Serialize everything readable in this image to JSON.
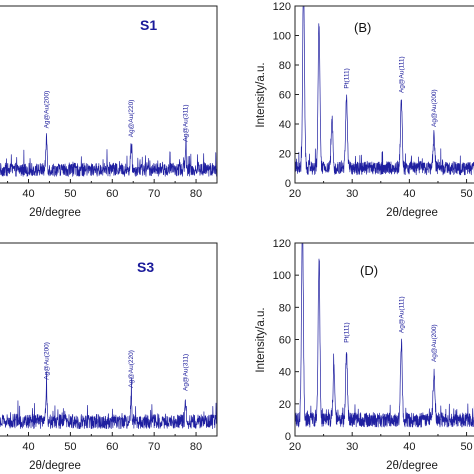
{
  "chart_data": [
    {
      "id": "S1",
      "type": "line",
      "panel_label": "S1",
      "xlabel": "2θ/degree",
      "ylabel": "",
      "xlim": [
        32,
        85
      ],
      "ylim": [
        0,
        120
      ],
      "xticks": [
        40,
        50,
        60,
        70,
        80
      ],
      "xtick_labels": [
        "40",
        "50",
        "60",
        "70",
        "80"
      ],
      "yticks": [],
      "baseline": 9,
      "noise": 4.5,
      "peaks": [
        {
          "x": 44.3,
          "height": 22,
          "label": "Ag@Au(200)"
        },
        {
          "x": 64.5,
          "height": 16,
          "label": "Ag@Au(220)"
        },
        {
          "x": 77.5,
          "height": 13,
          "label": "Ag@Au(311)"
        }
      ],
      "series": [
        {
          "values_note_excluded": true
        }
      ]
    },
    {
      "id": "B",
      "type": "line",
      "panel_label": "(B)",
      "xlabel": "2θ/degree",
      "ylabel": "Intensity/a.u.",
      "xlim": [
        20,
        52
      ],
      "ylim": [
        0,
        120
      ],
      "xticks": [
        20,
        30,
        40,
        50
      ],
      "xtick_labels": [
        "20",
        "30",
        "40",
        "50"
      ],
      "yticks": [
        0,
        20,
        40,
        60,
        80,
        100,
        120
      ],
      "ytick_labels": [
        "0",
        "20",
        "40",
        "60",
        "80",
        "100",
        "120"
      ],
      "baseline": 10,
      "noise": 4.5,
      "peaks": [
        {
          "x": 21.5,
          "height": 125,
          "label": ""
        },
        {
          "x": 24.2,
          "height": 98,
          "label": ""
        },
        {
          "x": 26.5,
          "height": 32,
          "label": ""
        },
        {
          "x": 29.0,
          "height": 48,
          "label": "Pt(111)"
        },
        {
          "x": 38.6,
          "height": 45,
          "label": "Ag@Au(111)"
        },
        {
          "x": 44.3,
          "height": 22,
          "label": "Ag@Au(200)"
        }
      ]
    },
    {
      "id": "S3",
      "type": "line",
      "panel_label": "S3",
      "xlabel": "2θ/degree",
      "ylabel": "",
      "xlim": [
        32,
        85
      ],
      "ylim": [
        0,
        120
      ],
      "xticks": [
        40,
        50,
        60,
        70,
        80
      ],
      "xtick_labels": [
        "40",
        "50",
        "60",
        "70",
        "80"
      ],
      "yticks": [],
      "baseline": 9,
      "noise": 4.5,
      "peaks": [
        {
          "x": 44.3,
          "height": 20,
          "label": "Ag@Au(200)"
        },
        {
          "x": 64.5,
          "height": 15,
          "label": "Ag@Au(220)"
        },
        {
          "x": 77.5,
          "height": 13,
          "label": "Ag@Au(311)"
        }
      ]
    },
    {
      "id": "D",
      "type": "line",
      "panel_label": "(D)",
      "xlabel": "2θ/degree",
      "ylabel": "Intensity/a.u.",
      "xlim": [
        20,
        52
      ],
      "ylim": [
        0,
        120
      ],
      "xticks": [
        20,
        30,
        40,
        50
      ],
      "xtick_labels": [
        "20",
        "30",
        "40",
        "50"
      ],
      "yticks": [
        0,
        20,
        40,
        60,
        80,
        100,
        120
      ],
      "ytick_labels": [
        "0",
        "20",
        "40",
        "60",
        "80",
        "100",
        "120"
      ],
      "baseline": 10,
      "noise": 4.5,
      "peaks": [
        {
          "x": 21.3,
          "height": 125,
          "label": ""
        },
        {
          "x": 24.2,
          "height": 98,
          "label": ""
        },
        {
          "x": 26.8,
          "height": 32,
          "label": ""
        },
        {
          "x": 29.0,
          "height": 42,
          "label": "Pt(111)"
        },
        {
          "x": 38.6,
          "height": 48,
          "label": "Ag@Au(111)"
        },
        {
          "x": 44.3,
          "height": 30,
          "label": "Ag@Au(200)"
        }
      ]
    }
  ]
}
